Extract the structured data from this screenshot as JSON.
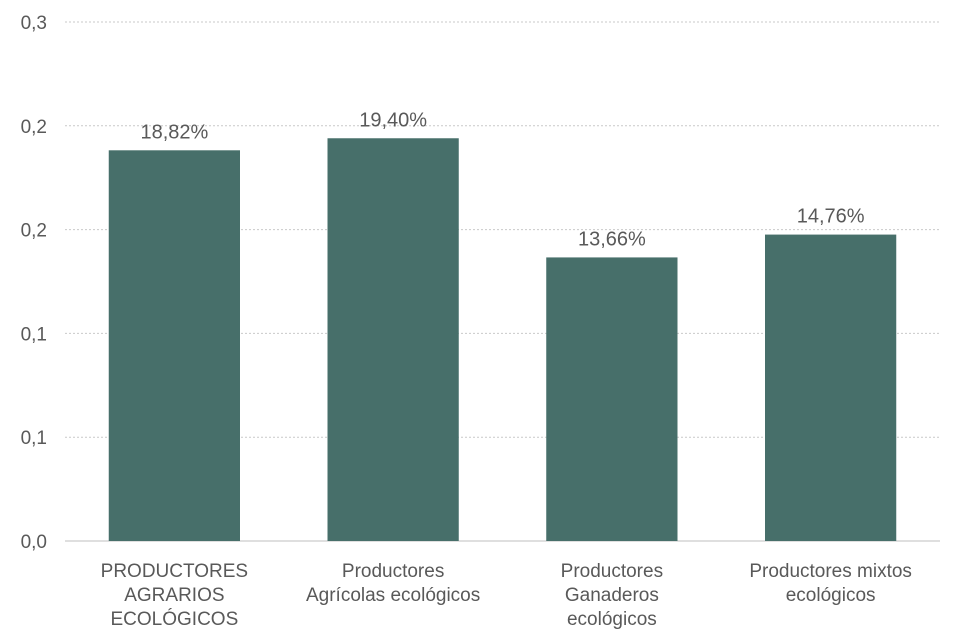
{
  "chart_data": {
    "type": "bar",
    "categories": [
      [
        "PRODUCTORES",
        "AGRARIOS",
        "ECOLÓGICOS"
      ],
      [
        "Productores",
        "Agrícolas ecológicos"
      ],
      [
        "Productores",
        "Ganaderos",
        "ecológicos"
      ],
      [
        "Productores mixtos",
        "ecológicos"
      ]
    ],
    "values": [
      0.1882,
      0.194,
      0.1366,
      0.1476
    ],
    "data_labels": [
      "18,82%",
      "19,40%",
      "13,66%",
      "14,76%"
    ],
    "yticks": [
      0.0,
      0.05,
      0.1,
      0.15,
      0.2,
      0.25
    ],
    "ytick_labels": [
      "0,0",
      "0,1",
      "0,1",
      "0,2",
      "0,2",
      "0,3"
    ],
    "ylim": [
      0,
      0.25
    ],
    "grid": true,
    "legend": "none",
    "bar_color": "#476f6a",
    "grid_color": "#c9c9c9",
    "axis_color": "#bfbfbf",
    "text_color": "#595959",
    "title": "",
    "xlabel": "",
    "ylabel": ""
  }
}
